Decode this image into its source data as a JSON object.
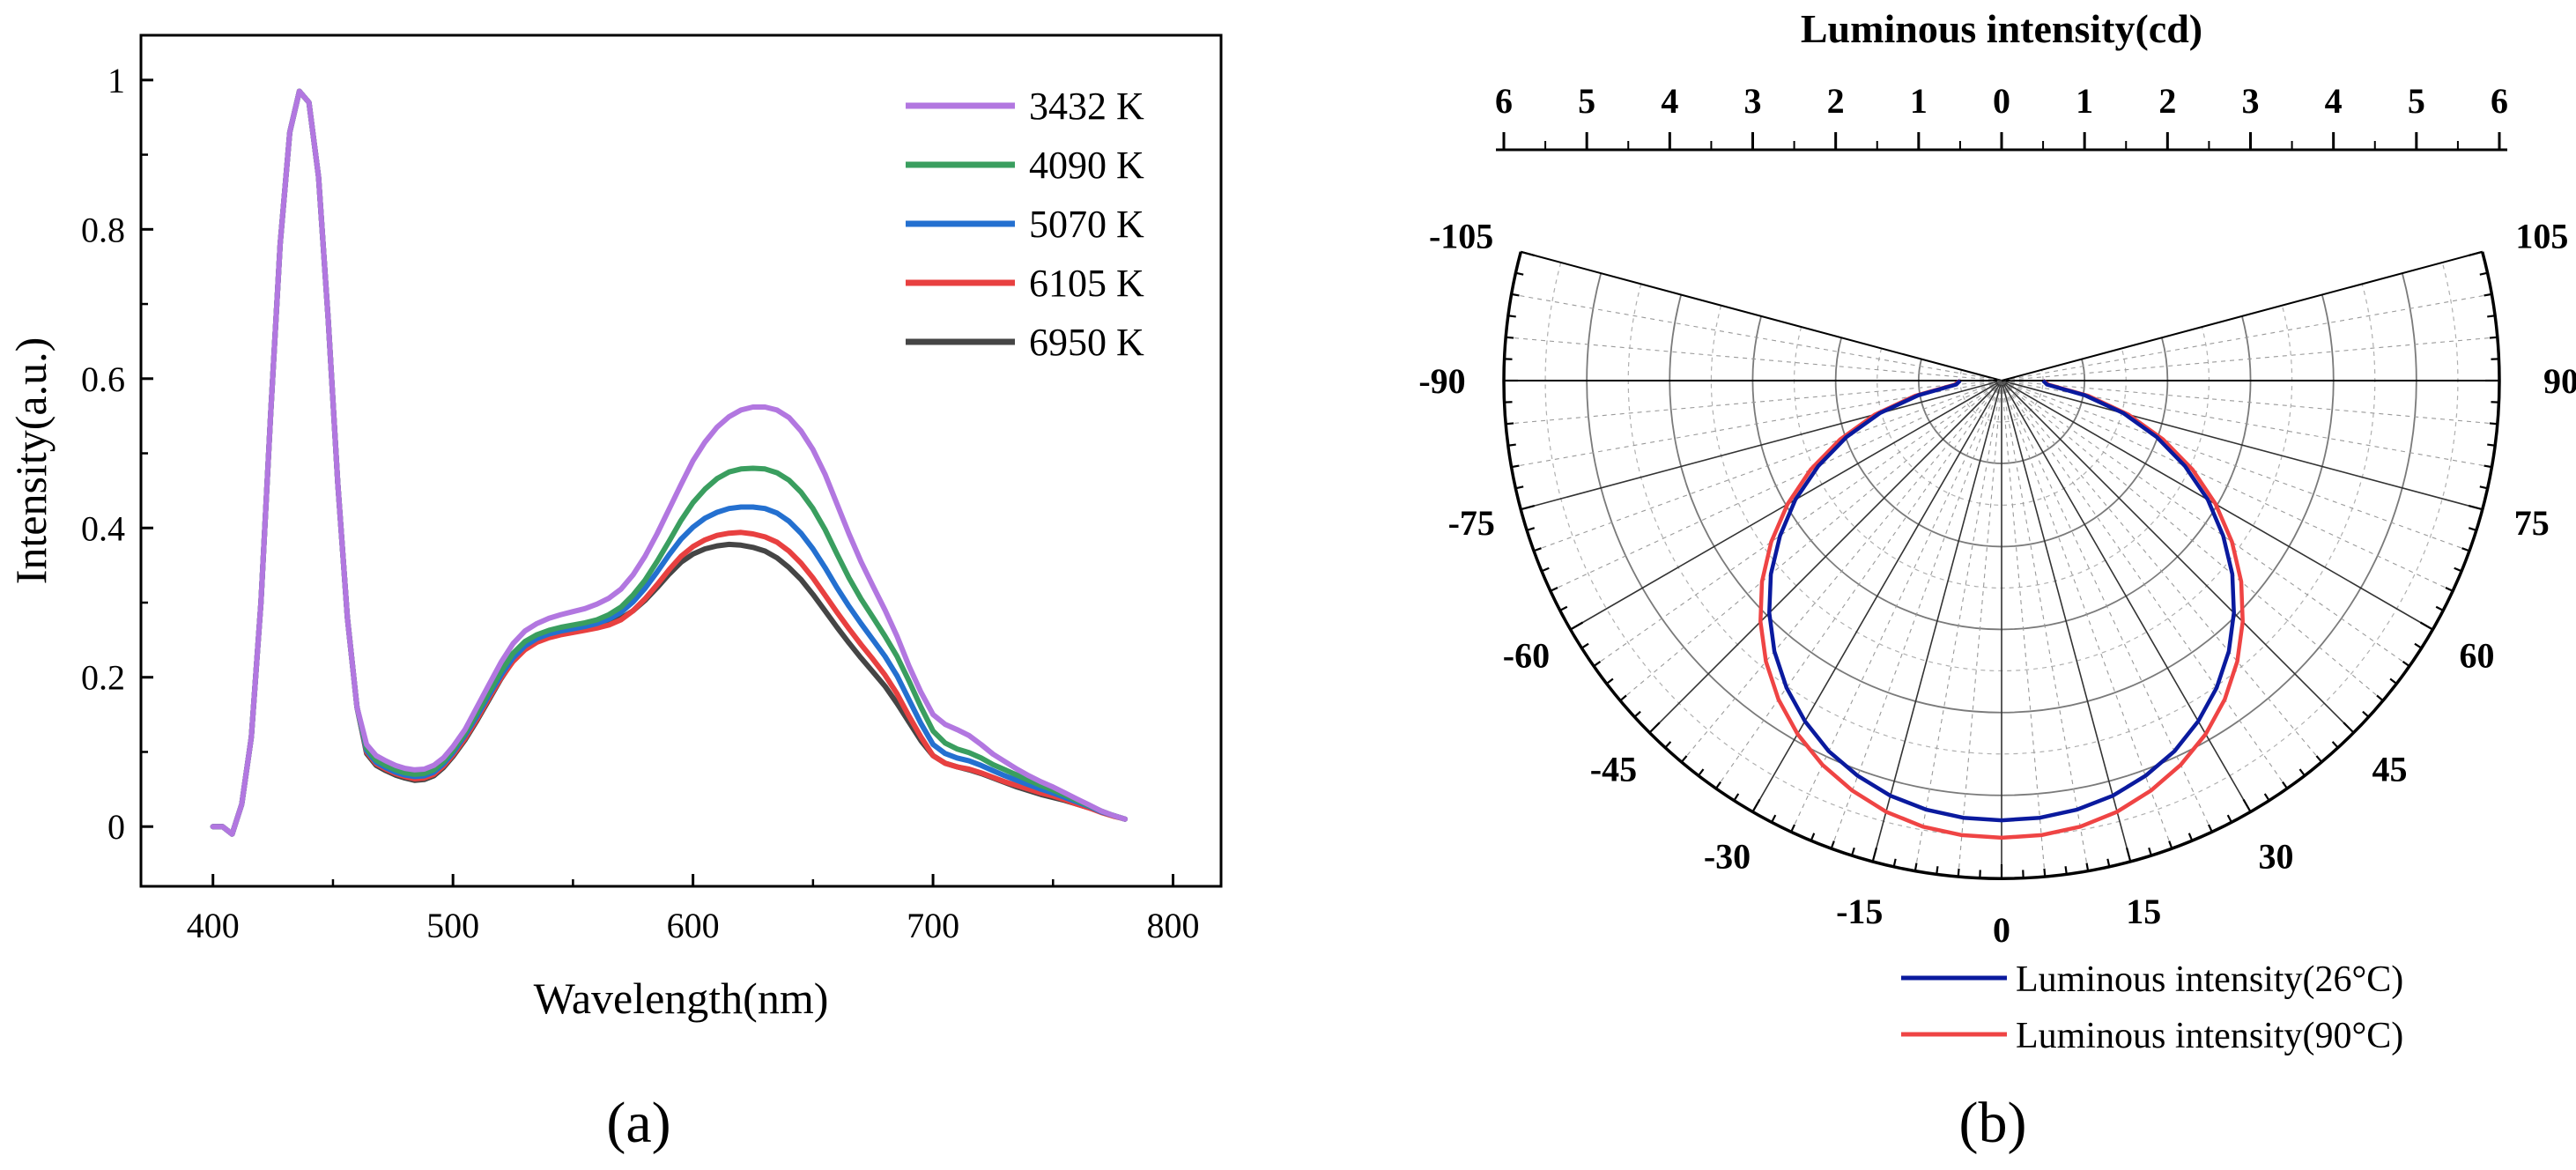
{
  "panel_labels": [
    "(a)",
    "(b)"
  ],
  "chart_data": [
    {
      "type": "line",
      "panel": "(a)",
      "xlabel": "Wavelength(nm)",
      "ylabel": "Intensity(a.u.)",
      "xlim": [
        370,
        820
      ],
      "ylim": [
        -0.08,
        1.06
      ],
      "xticks": [
        400,
        500,
        600,
        700,
        800
      ],
      "yticks": [
        0,
        0.2,
        0.4,
        0.6,
        0.8,
        1
      ],
      "ytick_labels": [
        "0",
        "0.2",
        "0.4",
        "0.6",
        "0.8",
        "1"
      ],
      "x": [
        400,
        404,
        408,
        412,
        416,
        420,
        424,
        428,
        432,
        436,
        440,
        444,
        448,
        452,
        456,
        460,
        464,
        468,
        472,
        476,
        480,
        484,
        488,
        492,
        496,
        500,
        505,
        510,
        515,
        520,
        525,
        530,
        535,
        540,
        545,
        550,
        555,
        560,
        565,
        570,
        575,
        580,
        585,
        590,
        595,
        600,
        605,
        610,
        615,
        620,
        625,
        630,
        635,
        640,
        645,
        650,
        655,
        660,
        665,
        670,
        675,
        680,
        685,
        690,
        695,
        700,
        705,
        710,
        715,
        720,
        725,
        730,
        735,
        740,
        745,
        750,
        755,
        760,
        765,
        770,
        775,
        780
      ],
      "series": [
        {
          "name": "3432 K",
          "color": "#b277e0",
          "values": [
            0.0,
            0.0,
            -0.01,
            0.03,
            0.12,
            0.3,
            0.55,
            0.78,
            0.93,
            0.985,
            0.97,
            0.87,
            0.68,
            0.46,
            0.28,
            0.16,
            0.11,
            0.095,
            0.088,
            0.082,
            0.078,
            0.076,
            0.077,
            0.082,
            0.092,
            0.107,
            0.13,
            0.16,
            0.19,
            0.22,
            0.245,
            0.262,
            0.272,
            0.279,
            0.284,
            0.288,
            0.292,
            0.298,
            0.306,
            0.318,
            0.337,
            0.362,
            0.392,
            0.425,
            0.458,
            0.49,
            0.515,
            0.535,
            0.549,
            0.558,
            0.562,
            0.562,
            0.558,
            0.548,
            0.53,
            0.505,
            0.472,
            0.432,
            0.392,
            0.355,
            0.322,
            0.29,
            0.255,
            0.215,
            0.18,
            0.15,
            0.137,
            0.13,
            0.122,
            0.11,
            0.097,
            0.087,
            0.077,
            0.068,
            0.06,
            0.053,
            0.045,
            0.037,
            0.029,
            0.021,
            0.015,
            0.01
          ]
        },
        {
          "name": "4090 K",
          "color": "#3a9e5f",
          "values": [
            0.0,
            0.0,
            -0.01,
            0.03,
            0.12,
            0.3,
            0.55,
            0.78,
            0.93,
            0.985,
            0.97,
            0.87,
            0.68,
            0.46,
            0.28,
            0.16,
            0.105,
            0.089,
            0.082,
            0.076,
            0.072,
            0.07,
            0.071,
            0.076,
            0.087,
            0.102,
            0.125,
            0.152,
            0.18,
            0.208,
            0.232,
            0.248,
            0.257,
            0.263,
            0.267,
            0.27,
            0.273,
            0.277,
            0.284,
            0.294,
            0.31,
            0.33,
            0.355,
            0.382,
            0.41,
            0.434,
            0.452,
            0.466,
            0.475,
            0.479,
            0.48,
            0.479,
            0.474,
            0.464,
            0.448,
            0.426,
            0.398,
            0.365,
            0.333,
            0.305,
            0.28,
            0.255,
            0.228,
            0.195,
            0.16,
            0.128,
            0.112,
            0.104,
            0.099,
            0.092,
            0.083,
            0.076,
            0.069,
            0.062,
            0.055,
            0.049,
            0.042,
            0.035,
            0.028,
            0.021,
            0.015,
            0.01
          ]
        },
        {
          "name": "5070 K",
          "color": "#2470d0",
          "values": [
            0.0,
            0.0,
            -0.01,
            0.03,
            0.12,
            0.3,
            0.55,
            0.78,
            0.93,
            0.985,
            0.97,
            0.87,
            0.68,
            0.46,
            0.28,
            0.16,
            0.102,
            0.086,
            0.079,
            0.073,
            0.069,
            0.067,
            0.068,
            0.073,
            0.084,
            0.099,
            0.122,
            0.148,
            0.176,
            0.203,
            0.226,
            0.242,
            0.252,
            0.258,
            0.262,
            0.265,
            0.268,
            0.272,
            0.278,
            0.287,
            0.301,
            0.319,
            0.341,
            0.364,
            0.385,
            0.401,
            0.413,
            0.421,
            0.426,
            0.428,
            0.428,
            0.426,
            0.42,
            0.409,
            0.393,
            0.372,
            0.347,
            0.32,
            0.295,
            0.272,
            0.25,
            0.228,
            0.202,
            0.17,
            0.138,
            0.11,
            0.098,
            0.092,
            0.088,
            0.082,
            0.075,
            0.068,
            0.062,
            0.056,
            0.05,
            0.045,
            0.039,
            0.033,
            0.027,
            0.02,
            0.015,
            0.01
          ]
        },
        {
          "name": "6105 K",
          "color": "#e84040",
          "values": [
            0.0,
            0.0,
            -0.01,
            0.03,
            0.12,
            0.3,
            0.55,
            0.78,
            0.93,
            0.985,
            0.97,
            0.87,
            0.68,
            0.46,
            0.28,
            0.16,
            0.1,
            0.084,
            0.077,
            0.071,
            0.067,
            0.064,
            0.065,
            0.07,
            0.081,
            0.096,
            0.118,
            0.144,
            0.172,
            0.199,
            0.221,
            0.237,
            0.247,
            0.253,
            0.257,
            0.26,
            0.263,
            0.266,
            0.27,
            0.277,
            0.289,
            0.305,
            0.324,
            0.344,
            0.362,
            0.375,
            0.384,
            0.39,
            0.393,
            0.394,
            0.392,
            0.388,
            0.381,
            0.369,
            0.353,
            0.333,
            0.31,
            0.287,
            0.265,
            0.244,
            0.224,
            0.203,
            0.178,
            0.148,
            0.12,
            0.095,
            0.085,
            0.08,
            0.077,
            0.072,
            0.066,
            0.06,
            0.055,
            0.05,
            0.045,
            0.041,
            0.036,
            0.03,
            0.025,
            0.019,
            0.014,
            0.01
          ]
        },
        {
          "name": "6950 K",
          "color": "#454545",
          "values": [
            0.0,
            0.0,
            -0.01,
            0.03,
            0.12,
            0.3,
            0.55,
            0.78,
            0.93,
            0.985,
            0.97,
            0.87,
            0.68,
            0.46,
            0.28,
            0.16,
            0.098,
            0.082,
            0.075,
            0.069,
            0.065,
            0.062,
            0.063,
            0.068,
            0.079,
            0.094,
            0.116,
            0.142,
            0.17,
            0.198,
            0.222,
            0.241,
            0.253,
            0.26,
            0.264,
            0.266,
            0.268,
            0.27,
            0.273,
            0.279,
            0.289,
            0.303,
            0.32,
            0.338,
            0.354,
            0.365,
            0.372,
            0.376,
            0.378,
            0.377,
            0.374,
            0.369,
            0.36,
            0.347,
            0.331,
            0.311,
            0.289,
            0.267,
            0.246,
            0.226,
            0.207,
            0.188,
            0.165,
            0.14,
            0.115,
            0.095,
            0.085,
            0.08,
            0.076,
            0.071,
            0.065,
            0.059,
            0.053,
            0.048,
            0.043,
            0.039,
            0.035,
            0.03,
            0.025,
            0.02,
            0.015,
            0.01
          ]
        }
      ],
      "legend": [
        "3432 K",
        "4090 K",
        "5070 K",
        "6105 K",
        "6950 K"
      ],
      "legend_position": "top-right"
    },
    {
      "type": "polar",
      "panel": "(b)",
      "title": "Luminous intensity(cd)",
      "radial_ticks": [
        "6",
        "5",
        "4",
        "3",
        "2",
        "1",
        "0",
        "1",
        "2",
        "3",
        "4",
        "5",
        "6"
      ],
      "radial_range": [
        0,
        6
      ],
      "angle_range": [
        -105,
        105
      ],
      "angle_labels": [
        "-105",
        "-90",
        "-75",
        "-60",
        "-45",
        "-30",
        "-15",
        "0",
        "15",
        "30",
        "45",
        "60",
        "75",
        "90",
        "105"
      ],
      "angles_deg": [
        -90,
        -85,
        -80,
        -75,
        -70,
        -65,
        -60,
        -55,
        -50,
        -45,
        -40,
        -35,
        -30,
        -25,
        -20,
        -15,
        -10,
        -5,
        0,
        5,
        10,
        15,
        20,
        25,
        30,
        35,
        40,
        45,
        50,
        55,
        60,
        65,
        70,
        75,
        80,
        85,
        90
      ],
      "series": [
        {
          "name": "Luminous intensity(26°C)",
          "color": "#0a1a9e",
          "values": [
            0.5,
            0.55,
            1.02,
            1.52,
            1.99,
            2.44,
            2.87,
            3.26,
            3.63,
            3.96,
            4.26,
            4.52,
            4.74,
            4.93,
            5.07,
            5.18,
            5.25,
            5.29,
            5.3,
            5.29,
            5.25,
            5.18,
            5.07,
            4.93,
            4.74,
            4.52,
            4.26,
            3.96,
            3.63,
            3.26,
            2.87,
            2.44,
            1.99,
            1.52,
            1.02,
            0.55,
            0.5
          ]
        },
        {
          "name": "Luminous intensity(90°C)",
          "color": "#ef4444",
          "values": [
            0.5,
            0.57,
            1.06,
            1.58,
            2.07,
            2.54,
            2.98,
            3.39,
            3.77,
            4.11,
            4.42,
            4.69,
            4.92,
            5.11,
            5.26,
            5.38,
            5.46,
            5.5,
            5.51,
            5.5,
            5.46,
            5.38,
            5.26,
            5.11,
            4.92,
            4.69,
            4.42,
            4.11,
            3.77,
            3.39,
            2.98,
            2.54,
            2.07,
            1.58,
            1.06,
            0.57,
            0.5
          ]
        }
      ],
      "legend": [
        "Luminous intensity(26°C)",
        "Luminous intensity(90°C)"
      ],
      "legend_position": "bottom-right"
    }
  ]
}
